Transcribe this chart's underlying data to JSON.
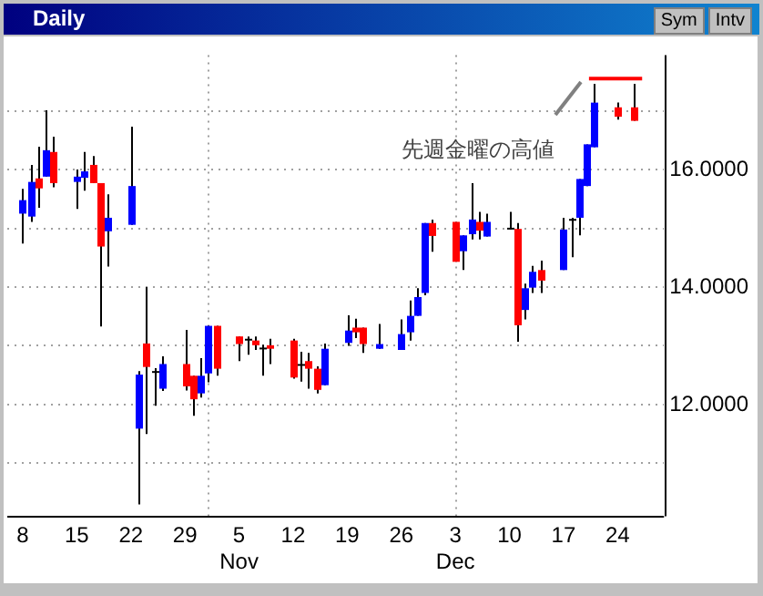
{
  "chart_data": {
    "type": "candlestick",
    "title": "Daily",
    "x": [
      "--10-08",
      "--10-09",
      "--10-10",
      "--10-11",
      "--10-12",
      "--10-15",
      "--10-16",
      "--10-17",
      "--10-18",
      "--10-19",
      "--10-22",
      "--10-23",
      "--10-24",
      "--10-25",
      "--10-26",
      "--10-29",
      "--10-30",
      "--10-31",
      "--11-01",
      "--11-02",
      "--11-05",
      "--11-06",
      "--11-07",
      "--11-08",
      "--11-09",
      "--11-12",
      "--11-13",
      "--11-14",
      "--11-15",
      "--11-16",
      "--11-19",
      "--11-20",
      "--11-21",
      "--11-23",
      "--11-26",
      "--11-27",
      "--11-28",
      "--11-29",
      "--11-30",
      "--12-03",
      "--12-04",
      "--12-05",
      "--12-06",
      "--12-07",
      "--12-10",
      "--12-11",
      "--12-12",
      "--12-13",
      "--12-14",
      "--12-17",
      "--12-18",
      "--12-19",
      "--12-20",
      "--12-21",
      "--12-24",
      "--12-26"
    ],
    "xticks": [
      {
        "value": "--10-08",
        "label": "8"
      },
      {
        "value": "--10-15",
        "label": "15"
      },
      {
        "value": "--10-22",
        "label": "22"
      },
      {
        "value": "--10-29",
        "label": "29"
      },
      {
        "value": "--11-05",
        "label": "5\nNov"
      },
      {
        "value": "--11-12",
        "label": "12"
      },
      {
        "value": "--11-19",
        "label": "19"
      },
      {
        "value": "--11-26",
        "label": "26"
      },
      {
        "value": "--12-03",
        "label": "3\nDec"
      },
      {
        "value": "--12-10",
        "label": "10"
      },
      {
        "value": "--12-17",
        "label": "17"
      },
      {
        "value": "--12-24",
        "label": "24"
      }
    ],
    "ohlc": [
      [
        15.25,
        15.67,
        14.74,
        15.48
      ],
      [
        15.2,
        16.08,
        15.11,
        15.79
      ],
      [
        15.85,
        16.39,
        15.35,
        15.68
      ],
      [
        15.88,
        17.01,
        15.88,
        16.33
      ],
      [
        16.3,
        16.56,
        15.7,
        15.77
      ],
      [
        15.79,
        16.0,
        15.33,
        15.88
      ],
      [
        15.86,
        16.3,
        15.64,
        15.97
      ],
      [
        16.08,
        16.23,
        15.77,
        15.77
      ],
      [
        15.77,
        15.77,
        13.33,
        14.69
      ],
      [
        14.95,
        15.58,
        14.35,
        15.18
      ],
      [
        15.06,
        16.73,
        15.06,
        15.72
      ],
      [
        11.59,
        12.57,
        10.3,
        12.51
      ],
      [
        13.04,
        14.0,
        11.5,
        12.64
      ],
      [
        12.57,
        12.62,
        11.98,
        12.57
      ],
      [
        12.27,
        12.82,
        12.23,
        12.69
      ],
      [
        12.69,
        13.27,
        12.24,
        12.31
      ],
      [
        12.49,
        12.49,
        11.81,
        12.09
      ],
      [
        12.19,
        12.79,
        12.12,
        12.49
      ],
      [
        12.53,
        13.34,
        12.38,
        13.34
      ],
      [
        13.34,
        13.34,
        12.49,
        12.61
      ],
      [
        13.16,
        13.16,
        12.74,
        13.03
      ],
      [
        13.12,
        13.16,
        12.85,
        13.12
      ],
      [
        13.09,
        13.16,
        12.93,
        13.01
      ],
      [
        12.97,
        13.02,
        12.49,
        12.97
      ],
      [
        13.01,
        13.12,
        12.69,
        12.95
      ],
      [
        13.09,
        13.12,
        12.44,
        12.46
      ],
      [
        12.69,
        12.9,
        12.39,
        12.69
      ],
      [
        12.74,
        12.88,
        12.27,
        12.61
      ],
      [
        12.61,
        12.65,
        12.19,
        12.25
      ],
      [
        12.33,
        13.04,
        12.33,
        12.95
      ],
      [
        13.05,
        13.52,
        13.0,
        13.26
      ],
      [
        13.31,
        13.46,
        13.13,
        13.23
      ],
      [
        13.31,
        13.31,
        12.88,
        13.03
      ],
      [
        12.95,
        13.37,
        12.95,
        13.03
      ],
      [
        12.93,
        13.45,
        12.93,
        13.2
      ],
      [
        13.23,
        13.77,
        13.09,
        13.51
      ],
      [
        13.51,
        13.98,
        13.51,
        13.83
      ],
      [
        13.9,
        15.09,
        13.86,
        15.09
      ],
      [
        15.09,
        15.15,
        14.6,
        14.87
      ],
      [
        15.11,
        15.11,
        14.43,
        14.43
      ],
      [
        14.61,
        14.88,
        14.29,
        14.88
      ],
      [
        14.9,
        15.77,
        14.81,
        15.15
      ],
      [
        15.11,
        15.28,
        14.81,
        14.96
      ],
      [
        14.86,
        15.25,
        14.86,
        15.11
      ],
      [
        15.01,
        15.28,
        14.98,
        15.01
      ],
      [
        14.99,
        15.09,
        13.07,
        13.35
      ],
      [
        13.61,
        14.06,
        13.45,
        13.98
      ],
      [
        13.99,
        14.36,
        13.9,
        14.26
      ],
      [
        14.29,
        14.45,
        13.9,
        14.11
      ],
      [
        14.29,
        15.18,
        14.29,
        14.98
      ],
      [
        15.16,
        15.18,
        14.51,
        15.16
      ],
      [
        15.18,
        15.84,
        14.88,
        15.84
      ],
      [
        15.72,
        16.43,
        15.72,
        16.43
      ],
      [
        16.38,
        17.46,
        16.38,
        17.14
      ],
      [
        17.06,
        17.14,
        16.85,
        16.9
      ],
      [
        17.06,
        17.46,
        16.83,
        16.83
      ]
    ],
    "colors": [
      "#0000ff",
      "#0000ff",
      "#ff0000",
      "#0000ff",
      "#ff0000",
      "#0000ff",
      "#0000ff",
      "#ff0000",
      "#ff0000",
      "#0000ff",
      "#0000ff",
      "#0000ff",
      "#ff0000",
      "#000000",
      "#0000ff",
      "#ff0000",
      "#ff0000",
      "#0000ff",
      "#0000ff",
      "#ff0000",
      "#ff0000",
      "#000000",
      "#ff0000",
      "#000000",
      "#ff0000",
      "#ff0000",
      "#000000",
      "#ff0000",
      "#ff0000",
      "#0000ff",
      "#0000ff",
      "#ff0000",
      "#ff0000",
      "#0000ff",
      "#0000ff",
      "#0000ff",
      "#0000ff",
      "#0000ff",
      "#ff0000",
      "#ff0000",
      "#0000ff",
      "#0000ff",
      "#ff0000",
      "#0000ff",
      "#000000",
      "#ff0000",
      "#0000ff",
      "#0000ff",
      "#ff0000",
      "#0000ff",
      "#000000",
      "#0000ff",
      "#0000ff",
      "#0000ff",
      "#ff0000",
      "#ff0000"
    ],
    "xlim": [
      "--10-06",
      "--12-30"
    ],
    "ylim": [
      10.1,
      17.95
    ],
    "yticks": [
      {
        "value": 11,
        "label": null
      },
      {
        "value": 12,
        "label": "12.0000"
      },
      {
        "value": 13,
        "label": null
      },
      {
        "value": 14,
        "label": "14.0000"
      },
      {
        "value": 15,
        "label": null
      },
      {
        "value": 16,
        "label": "16.0000"
      },
      {
        "value": 17,
        "label": null
      }
    ],
    "grid": "y",
    "ref_lines": [
      {
        "axis": "x",
        "value": "--11-01",
        "color": "#a0a0a0",
        "line_style": "dotted"
      },
      {
        "axis": "x",
        "value": "--12-03",
        "color": "#a0a0a0",
        "line_style": "dotted"
      },
      {
        "axis": "y",
        "value": 17.55,
        "color": "#ff0000"
      }
    ],
    "annotations": [
      "先週金曜の高値",
      "Sym",
      "Intv"
    ],
    "legend": false
  }
}
